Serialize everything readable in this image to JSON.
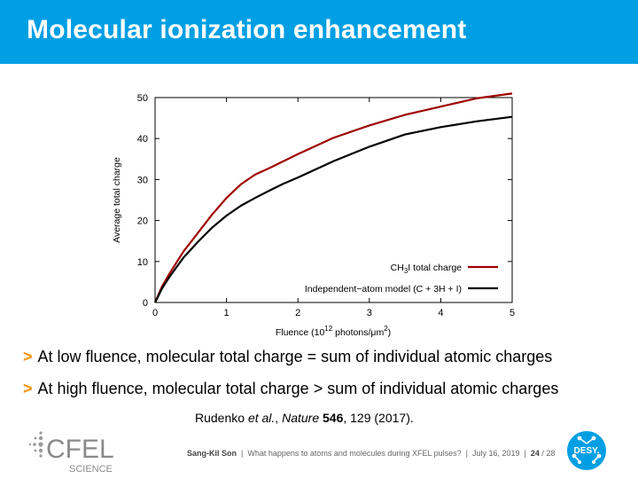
{
  "slide": {
    "title": "Molecular ionization enhancement"
  },
  "chart_data": {
    "type": "line",
    "xlabel_prefix": "Fluence (10",
    "xlabel_exp": "12",
    "xlabel_suffix": " photons/μm",
    "xlabel_exp2": "2",
    "xlabel_close": ")",
    "ylabel": "Average total charge",
    "xlim": [
      0,
      5
    ],
    "ylim": [
      0,
      50
    ],
    "xticks": [
      0,
      1,
      2,
      3,
      4,
      5
    ],
    "yticks": [
      0,
      10,
      20,
      30,
      40,
      50
    ],
    "legend_position": "bottom-right",
    "series": [
      {
        "name_prefix": "CH",
        "name_sub": "3",
        "name_suffix": "I total charge",
        "color": "#a00000",
        "x": [
          0,
          0.1,
          0.2,
          0.4,
          0.6,
          0.8,
          1.0,
          1.2,
          1.4,
          1.6,
          1.8,
          2.0,
          2.5,
          3.0,
          3.5,
          4.0,
          4.5,
          5.0
        ],
        "y": [
          0,
          4,
          7,
          12.5,
          17,
          21.5,
          25.5,
          28.8,
          31.2,
          32.8,
          34.5,
          36.2,
          40.2,
          43.2,
          45.8,
          47.8,
          49.8,
          51.0
        ]
      },
      {
        "name": "Independent−atom model (C + 3H + I)",
        "color": "#000000",
        "x": [
          0,
          0.1,
          0.2,
          0.4,
          0.6,
          0.8,
          1.0,
          1.2,
          1.4,
          1.6,
          1.8,
          2.0,
          2.5,
          3.0,
          3.5,
          4.0,
          4.5,
          5.0
        ],
        "y": [
          0,
          3.5,
          6.2,
          11,
          14.8,
          18.3,
          21.2,
          23.6,
          25.5,
          27.3,
          29.0,
          30.5,
          34.5,
          38.0,
          41.0,
          42.8,
          44.2,
          45.3
        ]
      }
    ]
  },
  "bullets": [
    "At low fluence, molecular total charge = sum of individual atomic charges",
    "At high fluence, molecular total charge > sum of individual atomic charges"
  ],
  "bullet_marker": ">",
  "citation": {
    "authors": "Rudenko ",
    "etal": "et al.",
    "comma": ", ",
    "journal": "Nature",
    "volume": "546",
    "rest": ", 129 (2017)."
  },
  "footer": {
    "author": "Sang-Kil Son",
    "talk": "What happens to atoms and molecules during XFEL pulses?",
    "date": "July 16, 2019",
    "page": "24",
    "total": "28"
  },
  "logos": {
    "cfel_text": "CFEL",
    "cfel_sub": "SCIENCE",
    "desy_text": "DESY."
  },
  "colors": {
    "banner": "#009fe3",
    "bullet_marker": "#f39200",
    "desy_blue": "#009fe3"
  }
}
